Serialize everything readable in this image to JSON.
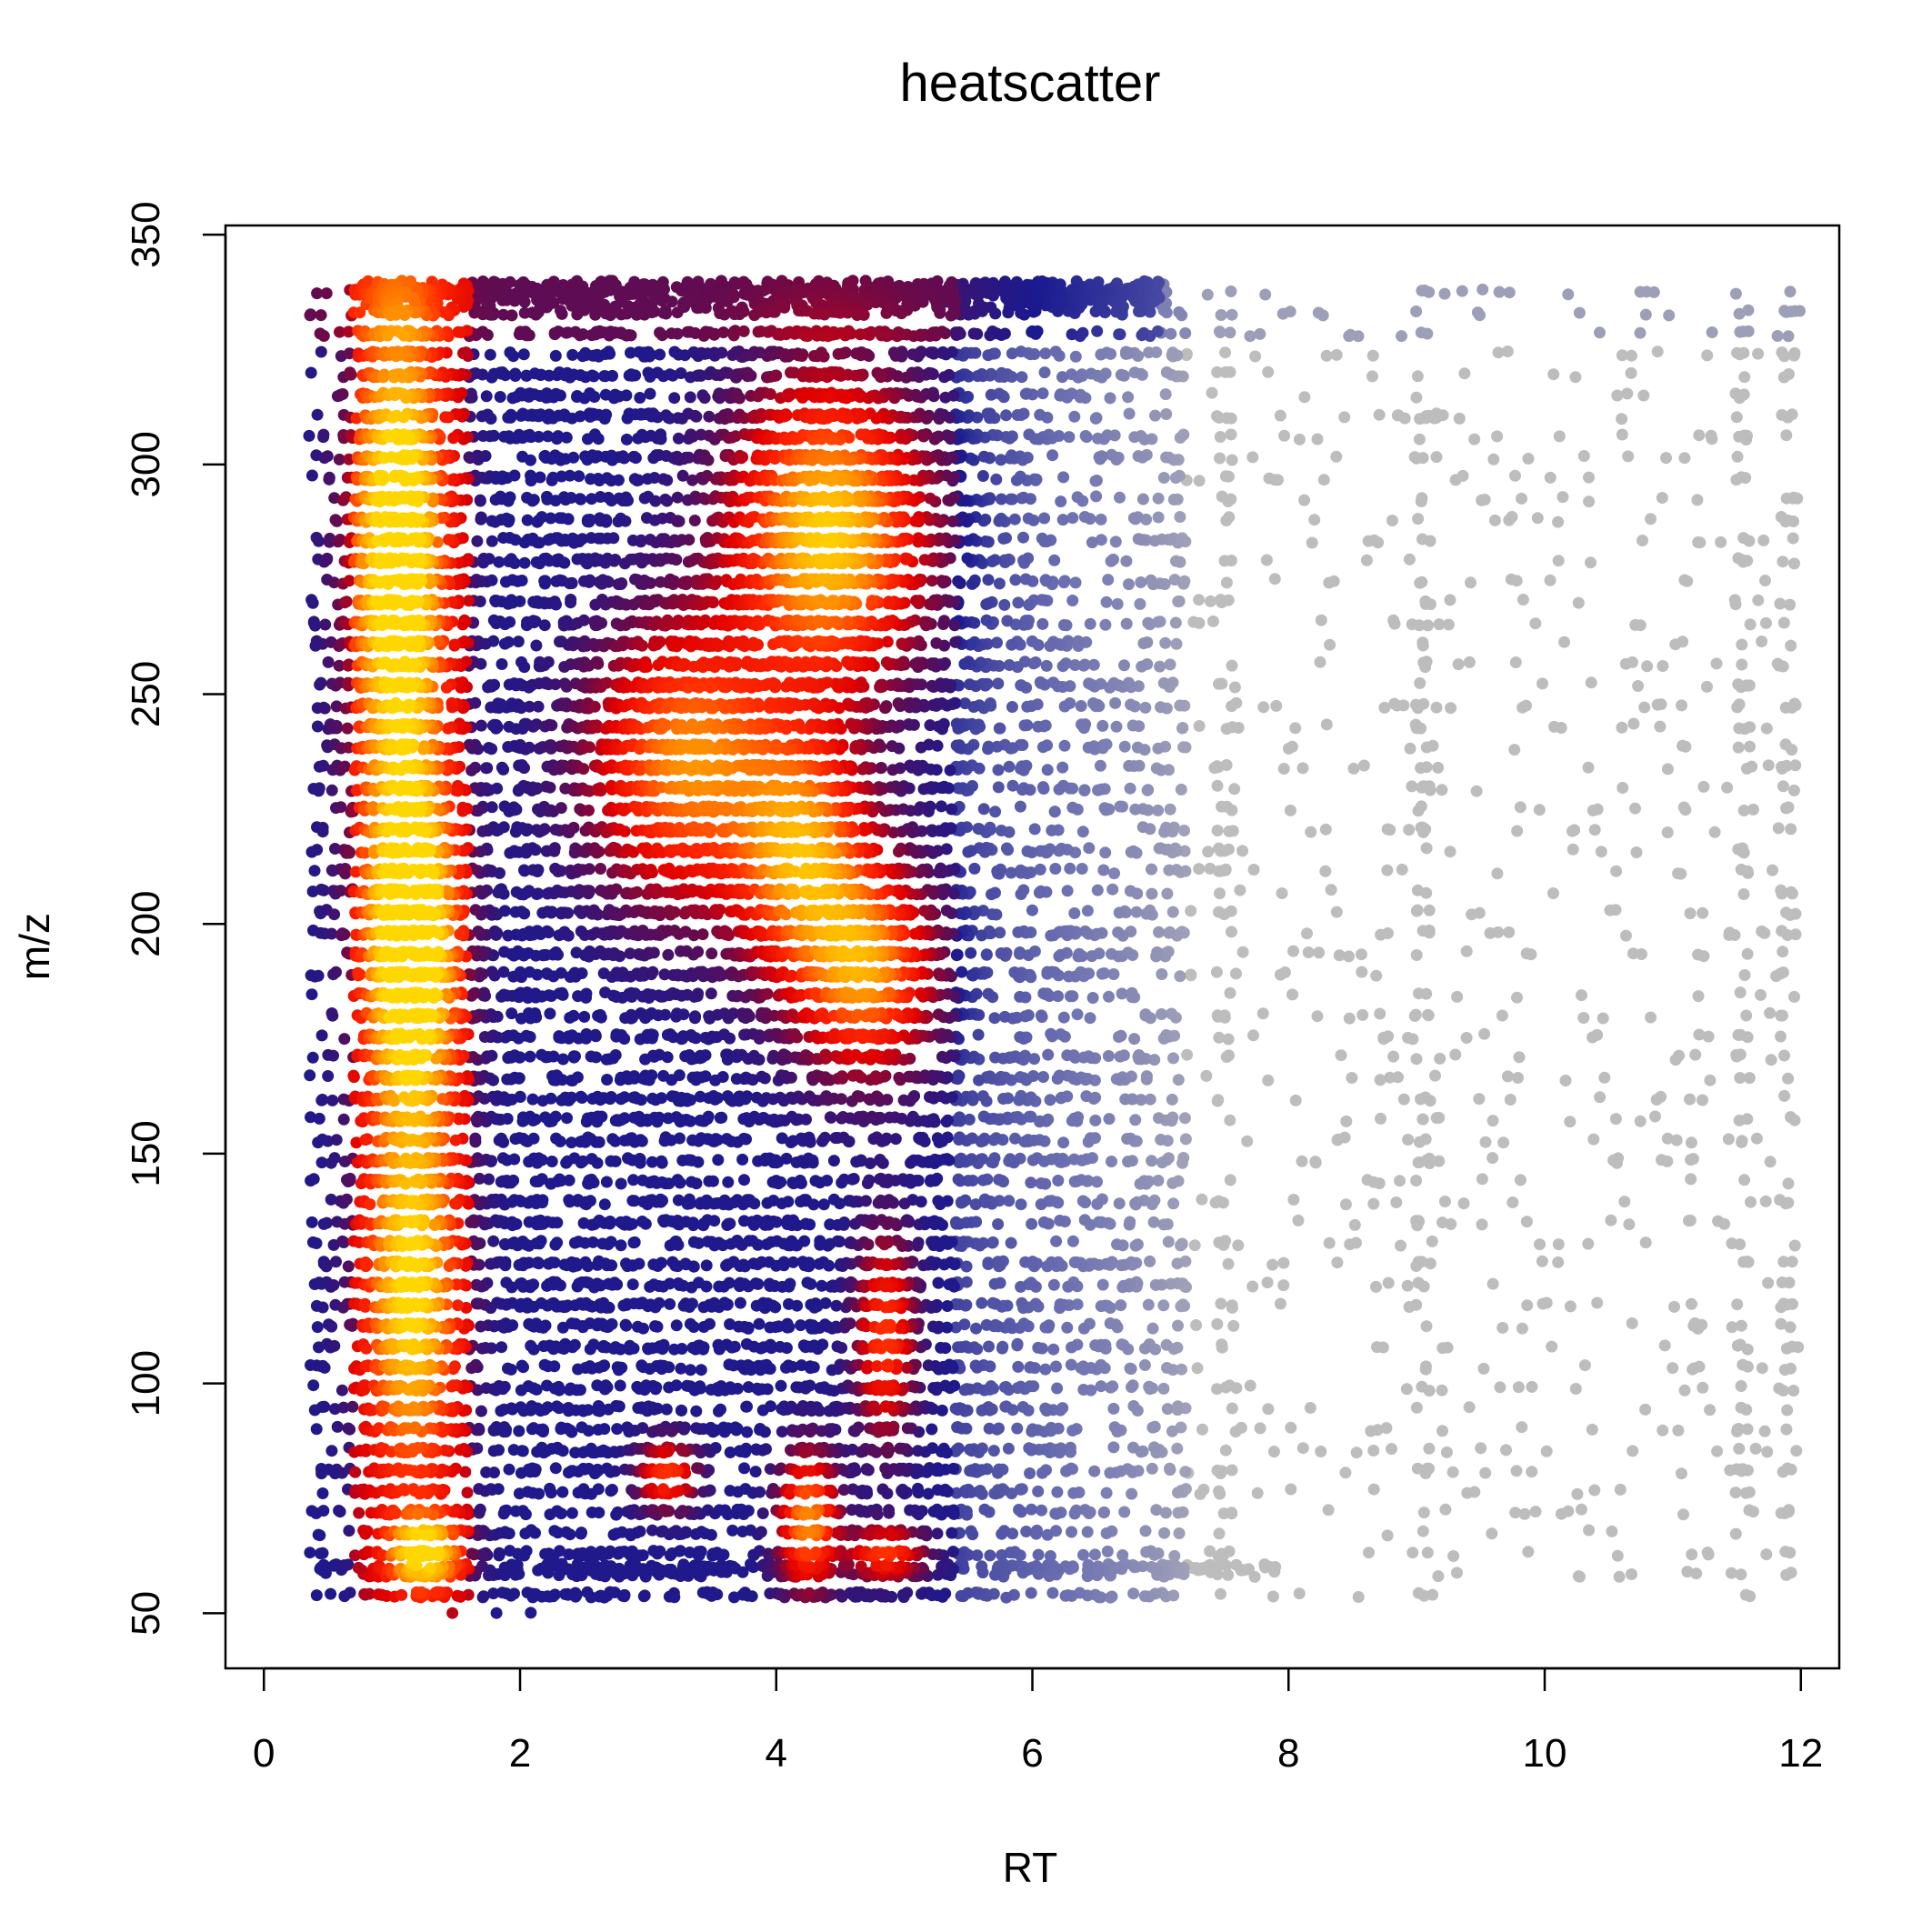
{
  "chart_data": {
    "type": "scatter",
    "title": "heatscatter",
    "xlabel": "RT",
    "ylabel": "m/z",
    "xlim": [
      -0.3,
      12.3
    ],
    "ylim": [
      38,
      352
    ],
    "x_ticks": [
      0,
      2,
      4,
      6,
      8,
      10,
      12
    ],
    "x_tick_labels": [
      "0",
      "2",
      "4",
      "6",
      "8",
      "10",
      "12"
    ],
    "y_ticks": [
      50,
      100,
      150,
      200,
      250,
      300,
      350
    ],
    "y_tick_labels": [
      "50",
      "100",
      "150",
      "200",
      "250",
      "300",
      "350"
    ],
    "grid": false,
    "legend": "none",
    "color_scale": {
      "encoding": "point density",
      "stops": [
        "#bdbdbd",
        "#6b6fb0",
        "#1a1a8f",
        "#6a0a4a",
        "#e00000",
        "#ff2a00",
        "#ff8c00",
        "#ffd700"
      ]
    },
    "density_clusters": [
      {
        "rt_center": 1.15,
        "mz_center": 195,
        "rt_spread": 0.25,
        "mz_spread": 25,
        "density": "very high"
      },
      {
        "rt_center": 1.05,
        "mz_center": 280,
        "rt_spread": 0.25,
        "mz_spread": 40,
        "density": "very high"
      },
      {
        "rt_center": 1.15,
        "mz_center": 120,
        "rt_spread": 0.25,
        "mz_spread": 30,
        "density": "high"
      },
      {
        "rt_center": 1.25,
        "mz_center": 63,
        "rt_spread": 0.2,
        "mz_spread": 6,
        "density": "high"
      },
      {
        "rt_center": 4.4,
        "mz_center": 285,
        "rt_spread": 0.5,
        "mz_spread": 22,
        "density": "very high"
      },
      {
        "rt_center": 4.2,
        "mz_center": 215,
        "rt_spread": 0.35,
        "mz_spread": 18,
        "density": "high"
      },
      {
        "rt_center": 4.7,
        "mz_center": 190,
        "rt_spread": 0.35,
        "mz_spread": 15,
        "density": "high"
      },
      {
        "rt_center": 3.3,
        "mz_center": 235,
        "rt_spread": 0.5,
        "mz_spread": 20,
        "density": "high"
      },
      {
        "rt_center": 4.25,
        "mz_center": 70,
        "rt_spread": 0.15,
        "mz_spread": 10,
        "density": "high"
      },
      {
        "rt_center": 4.85,
        "mz_center": 110,
        "rt_spread": 0.15,
        "mz_spread": 15,
        "density": "medium"
      },
      {
        "rt_center": 4.85,
        "mz_center": 63,
        "rt_spread": 0.2,
        "mz_spread": 4,
        "density": "medium"
      },
      {
        "rt_center": 3.15,
        "mz_center": 80,
        "rt_spread": 0.15,
        "mz_spread": 5,
        "density": "medium"
      }
    ],
    "x_extent": [
      0.35,
      12.0
    ],
    "y_extent": [
      50,
      340
    ]
  }
}
